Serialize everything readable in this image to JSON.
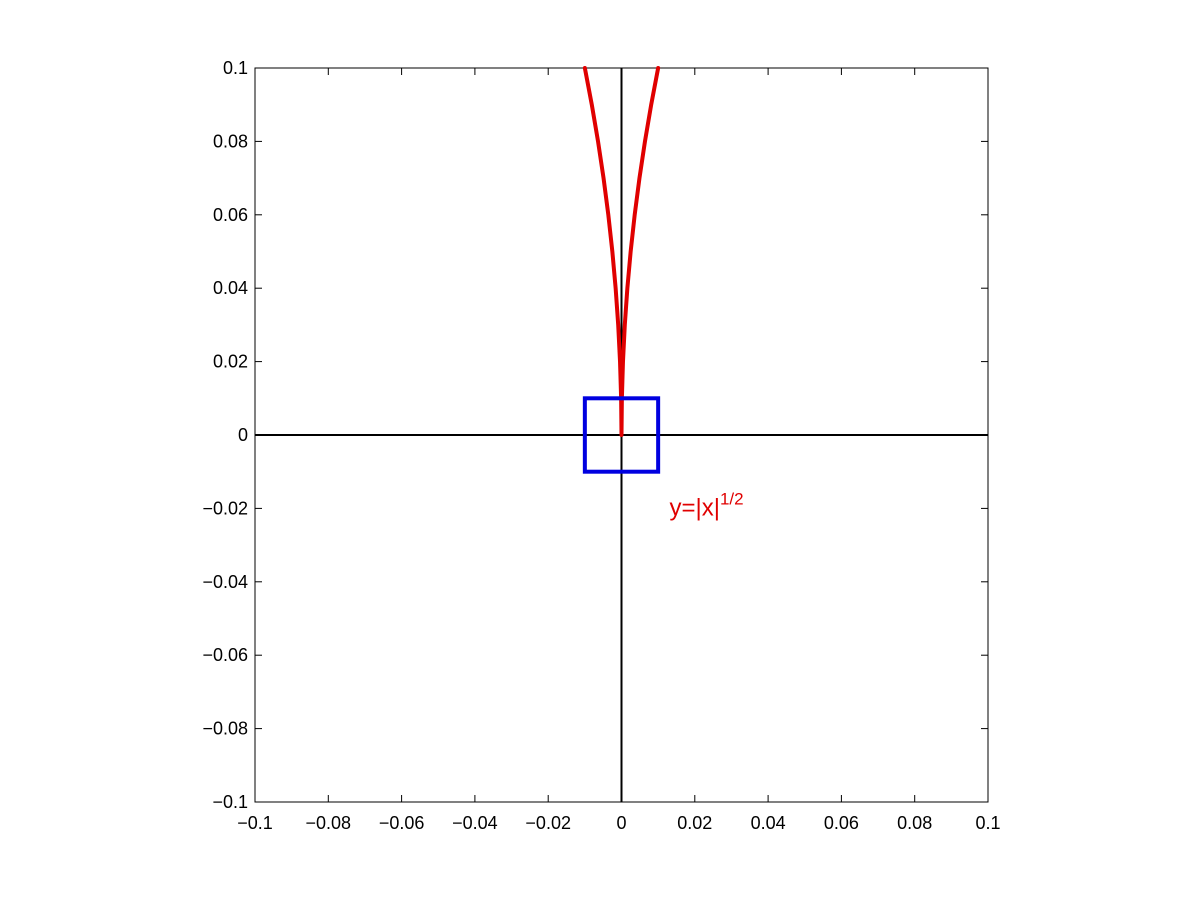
{
  "chart_data": {
    "type": "line",
    "title": "",
    "xlabel": "",
    "ylabel": "",
    "xlim": [
      -0.1,
      0.1
    ],
    "ylim": [
      -0.1,
      0.1
    ],
    "grid": false,
    "x_ticks": [
      -0.1,
      -0.08,
      -0.06,
      -0.04,
      -0.02,
      0,
      0.02,
      0.04,
      0.06,
      0.08,
      0.1
    ],
    "y_ticks": [
      -0.1,
      -0.08,
      -0.06,
      -0.04,
      -0.02,
      0,
      0.02,
      0.04,
      0.06,
      0.08,
      0.1
    ],
    "x_tick_labels": [
      "−0.1",
      "−0.08",
      "−0.06",
      "−0.04",
      "−0.02",
      "0",
      "0.02",
      "0.04",
      "0.06",
      "0.08",
      "0.1"
    ],
    "y_tick_labels": [
      "−0.1",
      "−0.08",
      "−0.06",
      "−0.04",
      "−0.02",
      "0",
      "0.02",
      "0.04",
      "0.06",
      "0.08",
      "0.1"
    ],
    "series": [
      {
        "color": "#e00000",
        "x": [
          -0.01,
          -0.0081,
          -0.0064,
          -0.0049,
          -0.0036,
          -0.0025,
          -0.0016,
          -0.0009,
          -0.0004,
          -0.0001,
          0,
          0.0001,
          0.0004,
          0.0009,
          0.0016,
          0.0025,
          0.0036,
          0.0049,
          0.0064,
          0.0081,
          0.01
        ],
        "y": [
          0.1,
          0.09,
          0.08,
          0.07,
          0.06,
          0.05,
          0.04,
          0.03,
          0.02,
          0.01,
          0,
          0.01,
          0.02,
          0.03,
          0.04,
          0.05,
          0.06,
          0.07,
          0.08,
          0.09,
          0.1
        ]
      }
    ],
    "reference_lines": [
      {
        "color": "#000000",
        "x": [
          -0.1,
          0.1
        ],
        "y": [
          0,
          0
        ]
      },
      {
        "color": "#000000",
        "x": [
          0,
          0
        ],
        "y": [
          -0.1,
          0.1
        ]
      }
    ],
    "box": {
      "color": "#0000e0",
      "x": [
        -0.01,
        0.01
      ],
      "y": [
        -0.01,
        0.01
      ]
    },
    "annotation": {
      "base": "y=|x|",
      "superscript": "1/2",
      "color": "#e00000",
      "x": 0.015,
      "y": -0.022
    }
  }
}
